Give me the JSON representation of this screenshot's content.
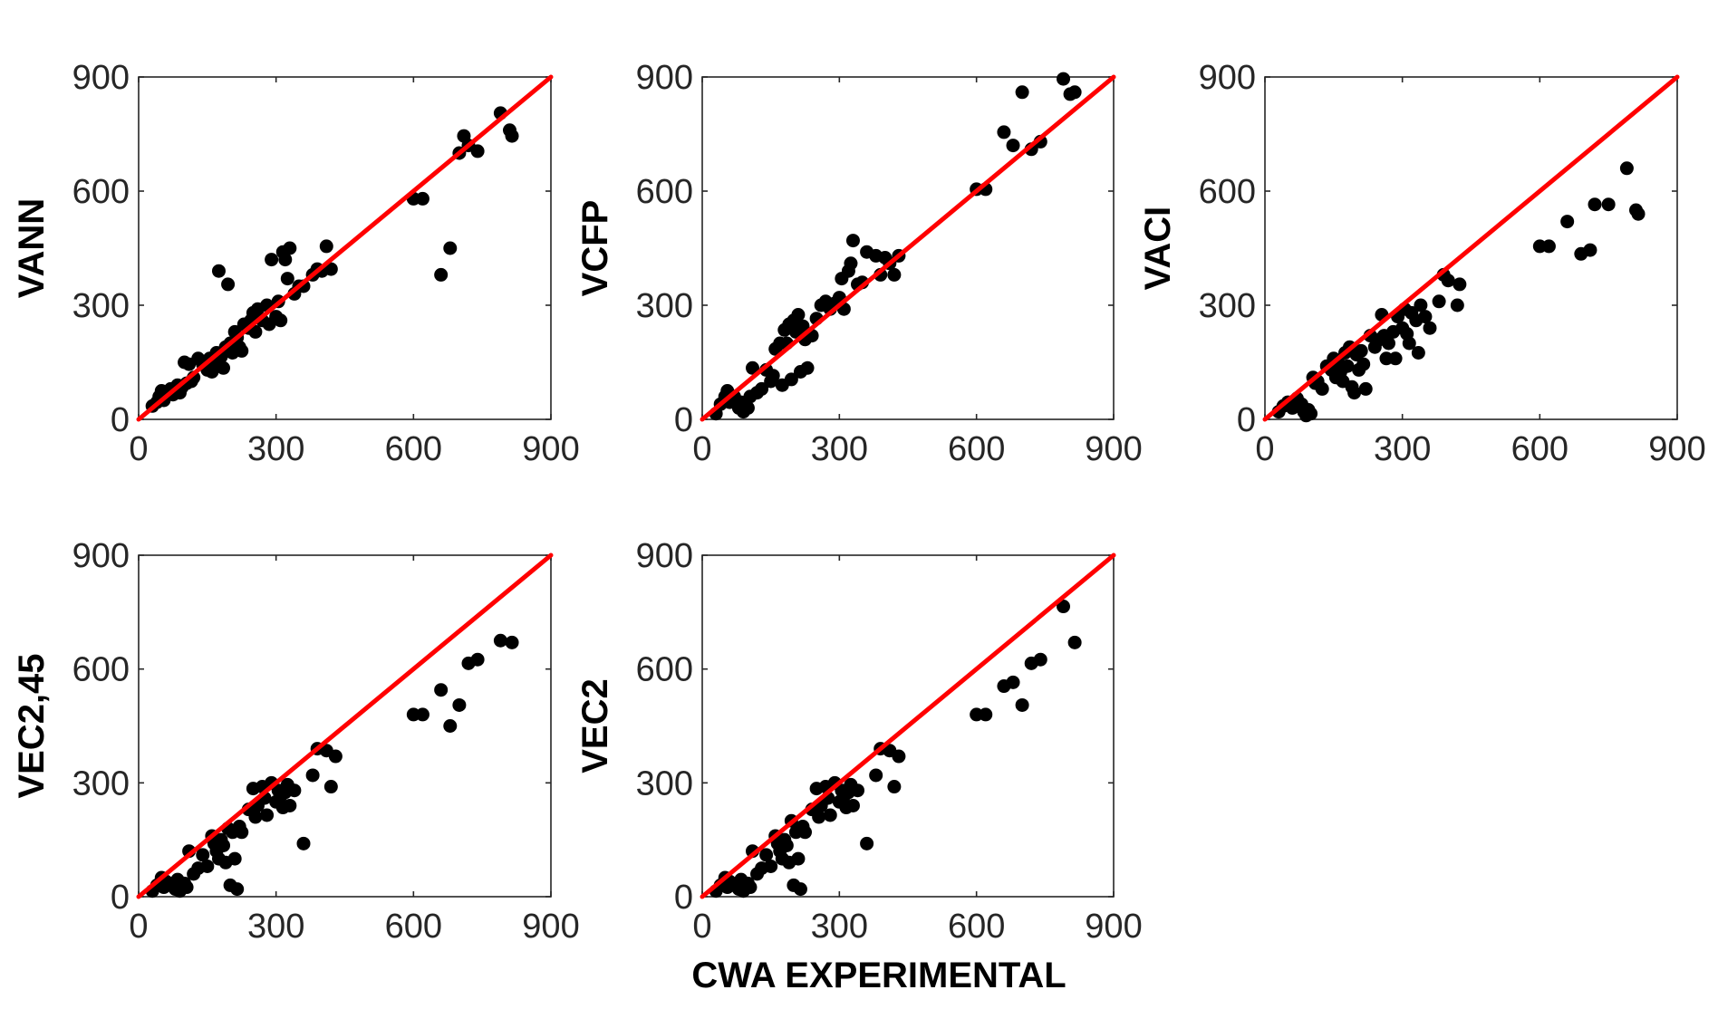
{
  "figure": {
    "xlabel": "CWA EXPERIMENTAL"
  },
  "colors": {
    "points": "#000000",
    "identity_line": "#ff0000",
    "axes": "#262626"
  },
  "chart_data": [
    {
      "type": "scatter",
      "title": "",
      "xlabel": "",
      "ylabel": "VANN",
      "xlim": [
        0,
        900
      ],
      "ylim": [
        0,
        900
      ],
      "xticks": [
        "0",
        "300",
        "600",
        "900"
      ],
      "yticks": [
        "0",
        "300",
        "600",
        "900"
      ],
      "reference_line": {
        "from": [
          0,
          0
        ],
        "to": [
          900,
          900
        ]
      },
      "points": [
        [
          30,
          35
        ],
        [
          40,
          45
        ],
        [
          45,
          60
        ],
        [
          50,
          75
        ],
        [
          55,
          50
        ],
        [
          60,
          70
        ],
        [
          70,
          80
        ],
        [
          75,
          65
        ],
        [
          80,
          75
        ],
        [
          85,
          90
        ],
        [
          90,
          70
        ],
        [
          95,
          85
        ],
        [
          100,
          150
        ],
        [
          105,
          95
        ],
        [
          110,
          145
        ],
        [
          115,
          100
        ],
        [
          120,
          110
        ],
        [
          130,
          160
        ],
        [
          140,
          145
        ],
        [
          150,
          130
        ],
        [
          155,
          160
        ],
        [
          160,
          125
        ],
        [
          165,
          150
        ],
        [
          170,
          175
        ],
        [
          175,
          390
        ],
        [
          180,
          165
        ],
        [
          185,
          135
        ],
        [
          190,
          190
        ],
        [
          195,
          355
        ],
        [
          200,
          200
        ],
        [
          205,
          175
        ],
        [
          210,
          230
        ],
        [
          215,
          215
        ],
        [
          220,
          190
        ],
        [
          225,
          180
        ],
        [
          230,
          250
        ],
        [
          240,
          240
        ],
        [
          245,
          260
        ],
        [
          250,
          280
        ],
        [
          255,
          230
        ],
        [
          260,
          290
        ],
        [
          270,
          260
        ],
        [
          280,
          300
        ],
        [
          285,
          250
        ],
        [
          290,
          420
        ],
        [
          300,
          270
        ],
        [
          305,
          310
        ],
        [
          310,
          260
        ],
        [
          315,
          440
        ],
        [
          320,
          420
        ],
        [
          325,
          370
        ],
        [
          330,
          450
        ],
        [
          340,
          330
        ],
        [
          350,
          350
        ],
        [
          360,
          350
        ],
        [
          380,
          380
        ],
        [
          390,
          395
        ],
        [
          400,
          390
        ],
        [
          410,
          455
        ],
        [
          420,
          395
        ],
        [
          600,
          580
        ],
        [
          620,
          580
        ],
        [
          660,
          380
        ],
        [
          680,
          450
        ],
        [
          700,
          700
        ],
        [
          710,
          745
        ],
        [
          720,
          720
        ],
        [
          740,
          705
        ],
        [
          790,
          805
        ],
        [
          810,
          760
        ],
        [
          815,
          745
        ]
      ]
    },
    {
      "type": "scatter",
      "title": "",
      "xlabel": "",
      "ylabel": "VCFP",
      "xlim": [
        0,
        900
      ],
      "ylim": [
        0,
        900
      ],
      "xticks": [
        "0",
        "300",
        "600",
        "900"
      ],
      "yticks": [
        "0",
        "300",
        "600",
        "900"
      ],
      "reference_line": {
        "from": [
          0,
          0
        ],
        "to": [
          900,
          900
        ]
      },
      "points": [
        [
          30,
          15
        ],
        [
          40,
          40
        ],
        [
          50,
          60
        ],
        [
          55,
          75
        ],
        [
          60,
          45
        ],
        [
          70,
          60
        ],
        [
          80,
          30
        ],
        [
          85,
          45
        ],
        [
          90,
          20
        ],
        [
          95,
          40
        ],
        [
          100,
          30
        ],
        [
          105,
          60
        ],
        [
          110,
          135
        ],
        [
          120,
          70
        ],
        [
          130,
          80
        ],
        [
          140,
          130
        ],
        [
          150,
          100
        ],
        [
          155,
          115
        ],
        [
          160,
          185
        ],
        [
          170,
          200
        ],
        [
          175,
          90
        ],
        [
          180,
          235
        ],
        [
          185,
          200
        ],
        [
          190,
          250
        ],
        [
          195,
          105
        ],
        [
          200,
          260
        ],
        [
          205,
          230
        ],
        [
          210,
          275
        ],
        [
          215,
          125
        ],
        [
          220,
          245
        ],
        [
          225,
          210
        ],
        [
          230,
          135
        ],
        [
          240,
          220
        ],
        [
          250,
          265
        ],
        [
          260,
          300
        ],
        [
          270,
          310
        ],
        [
          280,
          290
        ],
        [
          290,
          305
        ],
        [
          300,
          320
        ],
        [
          305,
          370
        ],
        [
          310,
          290
        ],
        [
          320,
          390
        ],
        [
          325,
          410
        ],
        [
          330,
          470
        ],
        [
          340,
          355
        ],
        [
          350,
          360
        ],
        [
          360,
          440
        ],
        [
          380,
          430
        ],
        [
          390,
          380
        ],
        [
          400,
          425
        ],
        [
          410,
          410
        ],
        [
          420,
          380
        ],
        [
          430,
          430
        ],
        [
          600,
          605
        ],
        [
          620,
          605
        ],
        [
          660,
          755
        ],
        [
          680,
          720
        ],
        [
          700,
          860
        ],
        [
          720,
          710
        ],
        [
          740,
          730
        ],
        [
          790,
          895
        ],
        [
          805,
          855
        ],
        [
          815,
          860
        ]
      ]
    },
    {
      "type": "scatter",
      "title": "",
      "xlabel": "",
      "ylabel": "VACI",
      "xlim": [
        0,
        900
      ],
      "ylim": [
        0,
        900
      ],
      "xticks": [
        "0",
        "300",
        "600",
        "900"
      ],
      "yticks": [
        "0",
        "300",
        "600",
        "900"
      ],
      "reference_line": {
        "from": [
          0,
          0
        ],
        "to": [
          900,
          900
        ]
      },
      "points": [
        [
          30,
          20
        ],
        [
          40,
          35
        ],
        [
          50,
          45
        ],
        [
          60,
          30
        ],
        [
          70,
          55
        ],
        [
          80,
          40
        ],
        [
          85,
          20
        ],
        [
          90,
          10
        ],
        [
          95,
          25
        ],
        [
          100,
          15
        ],
        [
          105,
          110
        ],
        [
          110,
          95
        ],
        [
          115,
          100
        ],
        [
          125,
          80
        ],
        [
          135,
          140
        ],
        [
          145,
          130
        ],
        [
          150,
          160
        ],
        [
          155,
          110
        ],
        [
          160,
          150
        ],
        [
          165,
          125
        ],
        [
          170,
          100
        ],
        [
          175,
          175
        ],
        [
          180,
          140
        ],
        [
          185,
          190
        ],
        [
          190,
          85
        ],
        [
          195,
          70
        ],
        [
          200,
          170
        ],
        [
          205,
          130
        ],
        [
          210,
          180
        ],
        [
          215,
          145
        ],
        [
          220,
          80
        ],
        [
          230,
          220
        ],
        [
          240,
          190
        ],
        [
          250,
          210
        ],
        [
          255,
          275
        ],
        [
          260,
          220
        ],
        [
          265,
          160
        ],
        [
          270,
          200
        ],
        [
          280,
          230
        ],
        [
          285,
          160
        ],
        [
          290,
          270
        ],
        [
          300,
          240
        ],
        [
          305,
          290
        ],
        [
          310,
          225
        ],
        [
          315,
          200
        ],
        [
          320,
          280
        ],
        [
          330,
          260
        ],
        [
          335,
          175
        ],
        [
          340,
          300
        ],
        [
          350,
          270
        ],
        [
          360,
          240
        ],
        [
          380,
          310
        ],
        [
          390,
          380
        ],
        [
          400,
          365
        ],
        [
          420,
          300
        ],
        [
          425,
          355
        ],
        [
          600,
          455
        ],
        [
          620,
          455
        ],
        [
          660,
          520
        ],
        [
          690,
          435
        ],
        [
          710,
          445
        ],
        [
          720,
          565
        ],
        [
          750,
          565
        ],
        [
          790,
          660
        ],
        [
          810,
          550
        ],
        [
          815,
          540
        ]
      ]
    },
    {
      "type": "scatter",
      "title": "",
      "xlabel": "",
      "ylabel": "VEC2,45",
      "xlim": [
        0,
        900
      ],
      "ylim": [
        0,
        900
      ],
      "xticks": [
        "0",
        "300",
        "600",
        "900"
      ],
      "yticks": [
        "0",
        "300",
        "600",
        "900"
      ],
      "reference_line": {
        "from": [
          0,
          0
        ],
        "to": [
          900,
          900
        ]
      },
      "points": [
        [
          30,
          15
        ],
        [
          40,
          30
        ],
        [
          50,
          50
        ],
        [
          55,
          25
        ],
        [
          60,
          40
        ],
        [
          70,
          30
        ],
        [
          80,
          20
        ],
        [
          85,
          45
        ],
        [
          90,
          15
        ],
        [
          100,
          35
        ],
        [
          105,
          25
        ],
        [
          110,
          120
        ],
        [
          120,
          60
        ],
        [
          130,
          75
        ],
        [
          140,
          110
        ],
        [
          150,
          80
        ],
        [
          160,
          160
        ],
        [
          165,
          140
        ],
        [
          170,
          120
        ],
        [
          175,
          100
        ],
        [
          180,
          150
        ],
        [
          185,
          135
        ],
        [
          190,
          90
        ],
        [
          195,
          180
        ],
        [
          200,
          30
        ],
        [
          205,
          170
        ],
        [
          210,
          100
        ],
        [
          215,
          20
        ],
        [
          220,
          185
        ],
        [
          225,
          170
        ],
        [
          240,
          230
        ],
        [
          250,
          285
        ],
        [
          255,
          210
        ],
        [
          260,
          240
        ],
        [
          270,
          290
        ],
        [
          275,
          260
        ],
        [
          280,
          215
        ],
        [
          290,
          300
        ],
        [
          300,
          250
        ],
        [
          305,
          280
        ],
        [
          310,
          265
        ],
        [
          315,
          235
        ],
        [
          320,
          275
        ],
        [
          325,
          295
        ],
        [
          330,
          240
        ],
        [
          340,
          280
        ],
        [
          360,
          140
        ],
        [
          380,
          320
        ],
        [
          390,
          390
        ],
        [
          410,
          385
        ],
        [
          420,
          290
        ],
        [
          430,
          370
        ],
        [
          600,
          480
        ],
        [
          620,
          480
        ],
        [
          660,
          545
        ],
        [
          680,
          450
        ],
        [
          700,
          505
        ],
        [
          720,
          615
        ],
        [
          740,
          625
        ],
        [
          790,
          675
        ],
        [
          815,
          670
        ]
      ]
    },
    {
      "type": "scatter",
      "title": "",
      "xlabel": "",
      "ylabel": "VEC2",
      "xlim": [
        0,
        900
      ],
      "ylim": [
        0,
        900
      ],
      "xticks": [
        "0",
        "300",
        "600",
        "900"
      ],
      "yticks": [
        "0",
        "300",
        "600",
        "900"
      ],
      "reference_line": {
        "from": [
          0,
          0
        ],
        "to": [
          900,
          900
        ]
      },
      "points": [
        [
          30,
          15
        ],
        [
          40,
          30
        ],
        [
          50,
          50
        ],
        [
          55,
          25
        ],
        [
          60,
          40
        ],
        [
          70,
          30
        ],
        [
          80,
          20
        ],
        [
          85,
          45
        ],
        [
          90,
          15
        ],
        [
          100,
          35
        ],
        [
          105,
          25
        ],
        [
          110,
          120
        ],
        [
          120,
          60
        ],
        [
          130,
          75
        ],
        [
          140,
          110
        ],
        [
          150,
          80
        ],
        [
          160,
          160
        ],
        [
          165,
          140
        ],
        [
          170,
          120
        ],
        [
          175,
          100
        ],
        [
          180,
          150
        ],
        [
          185,
          135
        ],
        [
          190,
          90
        ],
        [
          195,
          200
        ],
        [
          200,
          30
        ],
        [
          205,
          170
        ],
        [
          210,
          100
        ],
        [
          215,
          20
        ],
        [
          220,
          185
        ],
        [
          225,
          170
        ],
        [
          240,
          230
        ],
        [
          250,
          285
        ],
        [
          255,
          210
        ],
        [
          260,
          240
        ],
        [
          270,
          290
        ],
        [
          275,
          260
        ],
        [
          280,
          215
        ],
        [
          290,
          300
        ],
        [
          300,
          250
        ],
        [
          305,
          280
        ],
        [
          310,
          265
        ],
        [
          315,
          235
        ],
        [
          320,
          275
        ],
        [
          325,
          295
        ],
        [
          330,
          240
        ],
        [
          340,
          280
        ],
        [
          360,
          140
        ],
        [
          380,
          320
        ],
        [
          390,
          390
        ],
        [
          410,
          385
        ],
        [
          420,
          290
        ],
        [
          430,
          370
        ],
        [
          600,
          480
        ],
        [
          620,
          480
        ],
        [
          660,
          555
        ],
        [
          680,
          565
        ],
        [
          700,
          505
        ],
        [
          720,
          615
        ],
        [
          740,
          625
        ],
        [
          790,
          765
        ],
        [
          815,
          670
        ]
      ]
    }
  ]
}
